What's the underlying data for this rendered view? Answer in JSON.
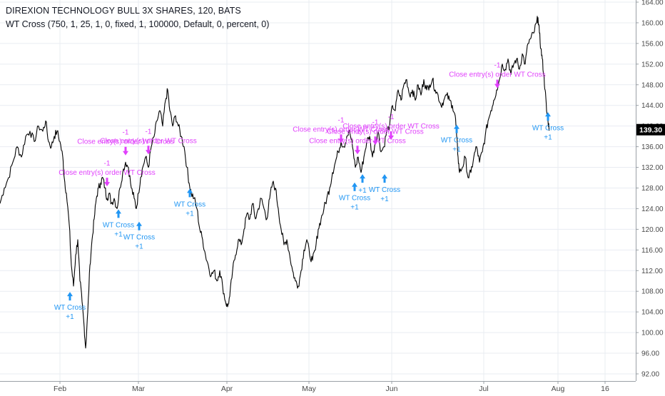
{
  "header": {
    "title": "DIREXION TECHNOLOGY BULL 3X SHARES, 120, BATS",
    "study": "WT Cross (750, 1, 25, 1, 0, fixed, 1, 100000, Default, 0, percent, 0)"
  },
  "colors": {
    "price_line": "#000000",
    "buy": "#2196f3",
    "sell": "#e040fb",
    "grid": "#e9ecf2",
    "axis_text": "#4a4a4a",
    "last_price_bg": "#000000",
    "last_price_text": "#ffffff"
  },
  "chart_data": {
    "type": "line",
    "title": "DIREXION TECHNOLOGY BULL 3X SHARES, 120, BATS",
    "ylim": [
      92,
      164
    ],
    "xlim": [
      0,
      891
    ],
    "y_ticks": [
      "92.00",
      "96.00",
      "100.00",
      "104.00",
      "108.00",
      "112.00",
      "116.00",
      "120.00",
      "124.00",
      "128.00",
      "132.00",
      "136.00",
      "140.00",
      "144.00",
      "148.00",
      "152.00",
      "156.00",
      "160.00",
      "164.00"
    ],
    "x_ticks": [
      {
        "label": "Feb",
        "t": 84
      },
      {
        "label": "Mar",
        "t": 194
      },
      {
        "label": "Apr",
        "t": 318
      },
      {
        "label": "May",
        "t": 433
      },
      {
        "label": "Jun",
        "t": 549
      },
      {
        "label": "Jul",
        "t": 678
      },
      {
        "label": "Aug",
        "t": 782
      },
      {
        "label": "16",
        "t": 848
      }
    ],
    "last_price": "139.30",
    "series": [
      {
        "points": [
          [
            0,
            125
          ],
          [
            6,
            128
          ],
          [
            12,
            130
          ],
          [
            18,
            133
          ],
          [
            24,
            136
          ],
          [
            30,
            134
          ],
          [
            36,
            138
          ],
          [
            42,
            139
          ],
          [
            48,
            137
          ],
          [
            54,
            140
          ],
          [
            60,
            139
          ],
          [
            64,
            141
          ],
          [
            68,
            137
          ],
          [
            72,
            136
          ],
          [
            76,
            138
          ],
          [
            80,
            139
          ],
          [
            84,
            137
          ],
          [
            88,
            134
          ],
          [
            90,
            130
          ],
          [
            93,
            127
          ],
          [
            97,
            121
          ],
          [
            100,
            113
          ],
          [
            103,
            109
          ],
          [
            106,
            115
          ],
          [
            109,
            118
          ],
          [
            112,
            110
          ],
          [
            115,
            106
          ],
          [
            118,
            101
          ],
          [
            120,
            97
          ],
          [
            123,
            104
          ],
          [
            126,
            113
          ],
          [
            129,
            118
          ],
          [
            132,
            122
          ],
          [
            135,
            126
          ],
          [
            138,
            128
          ],
          [
            141,
            129
          ],
          [
            144,
            130
          ],
          [
            147,
            128
          ],
          [
            150,
            126
          ],
          [
            153,
            127
          ],
          [
            156,
            125
          ],
          [
            160,
            126
          ],
          [
            164,
            124
          ],
          [
            168,
            128
          ],
          [
            172,
            131
          ],
          [
            176,
            133
          ],
          [
            180,
            132
          ],
          [
            184,
            128
          ],
          [
            188,
            126
          ],
          [
            191,
            124
          ],
          [
            194,
            127
          ],
          [
            197,
            130
          ],
          [
            200,
            132
          ],
          [
            204,
            134
          ],
          [
            208,
            132
          ],
          [
            212,
            136
          ],
          [
            216,
            138
          ],
          [
            220,
            141
          ],
          [
            224,
            143
          ],
          [
            228,
            140
          ],
          [
            232,
            145
          ],
          [
            235,
            147
          ],
          [
            238,
            143
          ],
          [
            242,
            140
          ],
          [
            246,
            142
          ],
          [
            250,
            140
          ],
          [
            254,
            138
          ],
          [
            258,
            136
          ],
          [
            262,
            132
          ],
          [
            265,
            129
          ],
          [
            268,
            127
          ],
          [
            272,
            126
          ],
          [
            276,
            124
          ],
          [
            280,
            120
          ],
          [
            284,
            118
          ],
          [
            288,
            115
          ],
          [
            292,
            113
          ],
          [
            296,
            111
          ],
          [
            300,
            112
          ],
          [
            304,
            110
          ],
          [
            308,
            112
          ],
          [
            312,
            109
          ],
          [
            316,
            106
          ],
          [
            319,
            105
          ],
          [
            322,
            107
          ],
          [
            326,
            112
          ],
          [
            330,
            115
          ],
          [
            334,
            118
          ],
          [
            338,
            117
          ],
          [
            342,
            120
          ],
          [
            346,
            123
          ],
          [
            350,
            122
          ],
          [
            354,
            125
          ],
          [
            358,
            122
          ],
          [
            362,
            124
          ],
          [
            366,
            126
          ],
          [
            370,
            124
          ],
          [
            374,
            122
          ],
          [
            378,
            126
          ],
          [
            382,
            129
          ],
          [
            386,
            128
          ],
          [
            390,
            124
          ],
          [
            394,
            120
          ],
          [
            398,
            117
          ],
          [
            402,
            118
          ],
          [
            406,
            115
          ],
          [
            410,
            112
          ],
          [
            414,
            110
          ],
          [
            418,
            109
          ],
          [
            422,
            112
          ],
          [
            426,
            116
          ],
          [
            430,
            118
          ],
          [
            434,
            115
          ],
          [
            438,
            114
          ],
          [
            442,
            116
          ],
          [
            446,
            120
          ],
          [
            450,
            122
          ],
          [
            454,
            124
          ],
          [
            458,
            126
          ],
          [
            462,
            128
          ],
          [
            466,
            131
          ],
          [
            470,
            133
          ],
          [
            474,
            135
          ],
          [
            478,
            137
          ],
          [
            482,
            136
          ],
          [
            486,
            138
          ],
          [
            490,
            139
          ],
          [
            494,
            136
          ],
          [
            498,
            132
          ],
          [
            502,
            134
          ],
          [
            506,
            131
          ],
          [
            510,
            134
          ],
          [
            514,
            137
          ],
          [
            518,
            138
          ],
          [
            522,
            134
          ],
          [
            526,
            137
          ],
          [
            530,
            139
          ],
          [
            534,
            135
          ],
          [
            538,
            136
          ],
          [
            542,
            139
          ],
          [
            546,
            140
          ],
          [
            550,
            144
          ],
          [
            554,
            143
          ],
          [
            558,
            147
          ],
          [
            562,
            145
          ],
          [
            566,
            148
          ],
          [
            570,
            149
          ],
          [
            574,
            146
          ],
          [
            578,
            147
          ],
          [
            582,
            145
          ],
          [
            586,
            148
          ],
          [
            590,
            146
          ],
          [
            594,
            149
          ],
          [
            598,
            147
          ],
          [
            602,
            148
          ],
          [
            606,
            149
          ],
          [
            610,
            147
          ],
          [
            614,
            146
          ],
          [
            618,
            144
          ],
          [
            622,
            145
          ],
          [
            626,
            146
          ],
          [
            630,
            145
          ],
          [
            634,
            144
          ],
          [
            638,
            142
          ],
          [
            640,
            138
          ],
          [
            642,
            134
          ],
          [
            644,
            131
          ],
          [
            648,
            132
          ],
          [
            652,
            134
          ],
          [
            656,
            130
          ],
          [
            660,
            131
          ],
          [
            664,
            134
          ],
          [
            668,
            136
          ],
          [
            672,
            133
          ],
          [
            676,
            135
          ],
          [
            680,
            138
          ],
          [
            684,
            141
          ],
          [
            688,
            143
          ],
          [
            692,
            145
          ],
          [
            696,
            147
          ],
          [
            700,
            149
          ],
          [
            704,
            152
          ],
          [
            708,
            151
          ],
          [
            712,
            153
          ],
          [
            716,
            150
          ],
          [
            720,
            152
          ],
          [
            724,
            153
          ],
          [
            728,
            151
          ],
          [
            732,
            154
          ],
          [
            736,
            152
          ],
          [
            740,
            156
          ],
          [
            744,
            157
          ],
          [
            748,
            158
          ],
          [
            752,
            160
          ],
          [
            754,
            161
          ],
          [
            756,
            158
          ],
          [
            758,
            155
          ],
          [
            760,
            153
          ],
          [
            762,
            150
          ],
          [
            764,
            147
          ],
          [
            766,
            143
          ],
          [
            768,
            141
          ],
          [
            770,
            139.3
          ]
        ]
      }
    ],
    "buy_signals": [
      {
        "t": 98,
        "y": 107.6,
        "label": "WT Cross",
        "qty": "+1"
      },
      {
        "t": 166,
        "y": 123.6,
        "label": "WT Cross",
        "qty": "+1"
      },
      {
        "t": 195,
        "y": 121.2,
        "label": "WT Cross",
        "qty": "+1"
      },
      {
        "t": 266,
        "y": 127.6,
        "label": "WT Cross",
        "qty": "+1"
      },
      {
        "t": 497,
        "y": 128.8,
        "label": "WT Cross",
        "qty": "+1"
      },
      {
        "t": 508,
        "y": 130.4,
        "label": "",
        "qty": "+1"
      },
      {
        "t": 539,
        "y": 130.4,
        "label": "WT Cross",
        "qty": "+1"
      },
      {
        "t": 640,
        "y": 140.0,
        "label": "WT Cross",
        "qty": "+1"
      },
      {
        "t": 768,
        "y": 142.4,
        "label": "WT Cross",
        "qty": "+1"
      }
    ],
    "sell_signals": [
      {
        "t": 150,
        "y": 128.6,
        "label": "Close entry(s) order WT Cross",
        "qty": "-1"
      },
      {
        "t": 176,
        "y": 134.6,
        "label": "Close entry(s) order WT Cross",
        "qty": "-1"
      },
      {
        "t": 208,
        "y": 134.8,
        "label": "Close entry(s) order WT Cross",
        "qty": "-1"
      },
      {
        "t": 478,
        "y": 137.0,
        "label": "Close entry(s) order WT Cross",
        "qty": "-1"
      },
      {
        "t": 501,
        "y": 134.8,
        "label": "Close entry(s) order WT Cross",
        "qty": "-1"
      },
      {
        "t": 526,
        "y": 136.6,
        "label": "Close entry(s) order WT Cross",
        "qty": "-1"
      },
      {
        "t": 548,
        "y": 137.6,
        "label": "Close entry(s) order WT Cross",
        "qty": "-1"
      },
      {
        "t": 697,
        "y": 147.6,
        "label": "Close entry(s) order WT Cross",
        "qty": "-1"
      }
    ]
  }
}
